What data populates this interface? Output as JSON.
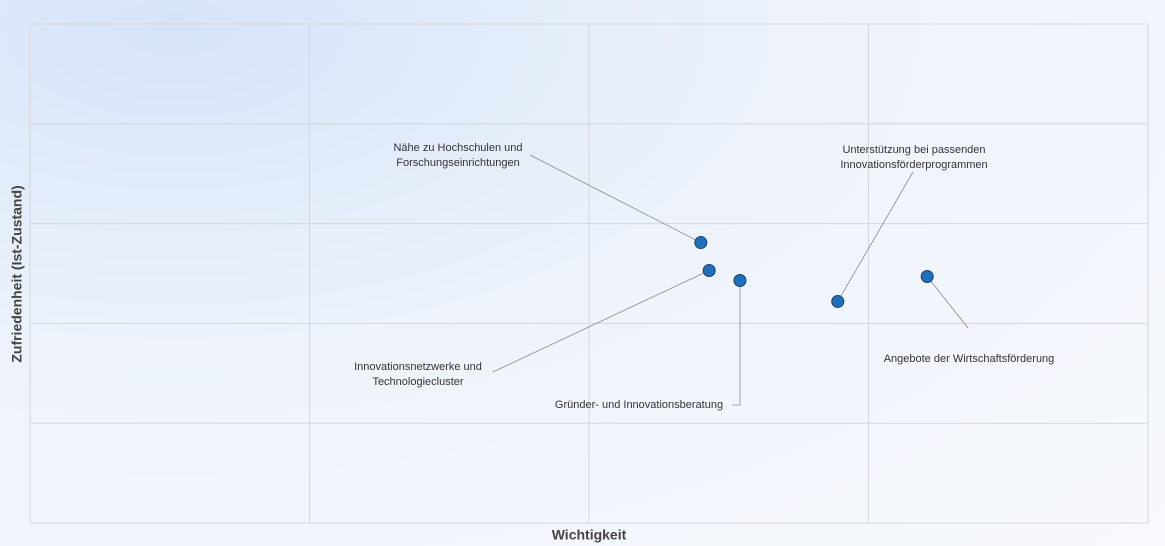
{
  "chart_data": {
    "type": "scatter",
    "x_label": "Wichtigkeit",
    "y_label": "Zufriedenheit (Ist-Zustand)",
    "labels": [
      [
        "Nähe zu Hochschulen und",
        "Forschungseinrichtungen"
      ],
      [
        "Innovationsnetzwerke und",
        "Technologiecluster"
      ],
      [
        "Gründer- und Innovationsberatung"
      ],
      [
        "Unterstützung bei passenden",
        "Innovationsförderprogrammen"
      ],
      [
        "Angebote der Wirtschaftsförderung"
      ]
    ],
    "x": [
      3.4,
      3.43,
      3.54,
      3.89,
      4.21
    ],
    "values": [
      2.81,
      2.53,
      2.43,
      2.22,
      2.47
    ],
    "color": "#1f6fbf",
    "xlim": [
      1,
      5
    ],
    "ylim": [
      0,
      5
    ],
    "xgrid": [
      2,
      3,
      4
    ],
    "ygrid": [
      1,
      2,
      3,
      4
    ],
    "grid": true
  }
}
